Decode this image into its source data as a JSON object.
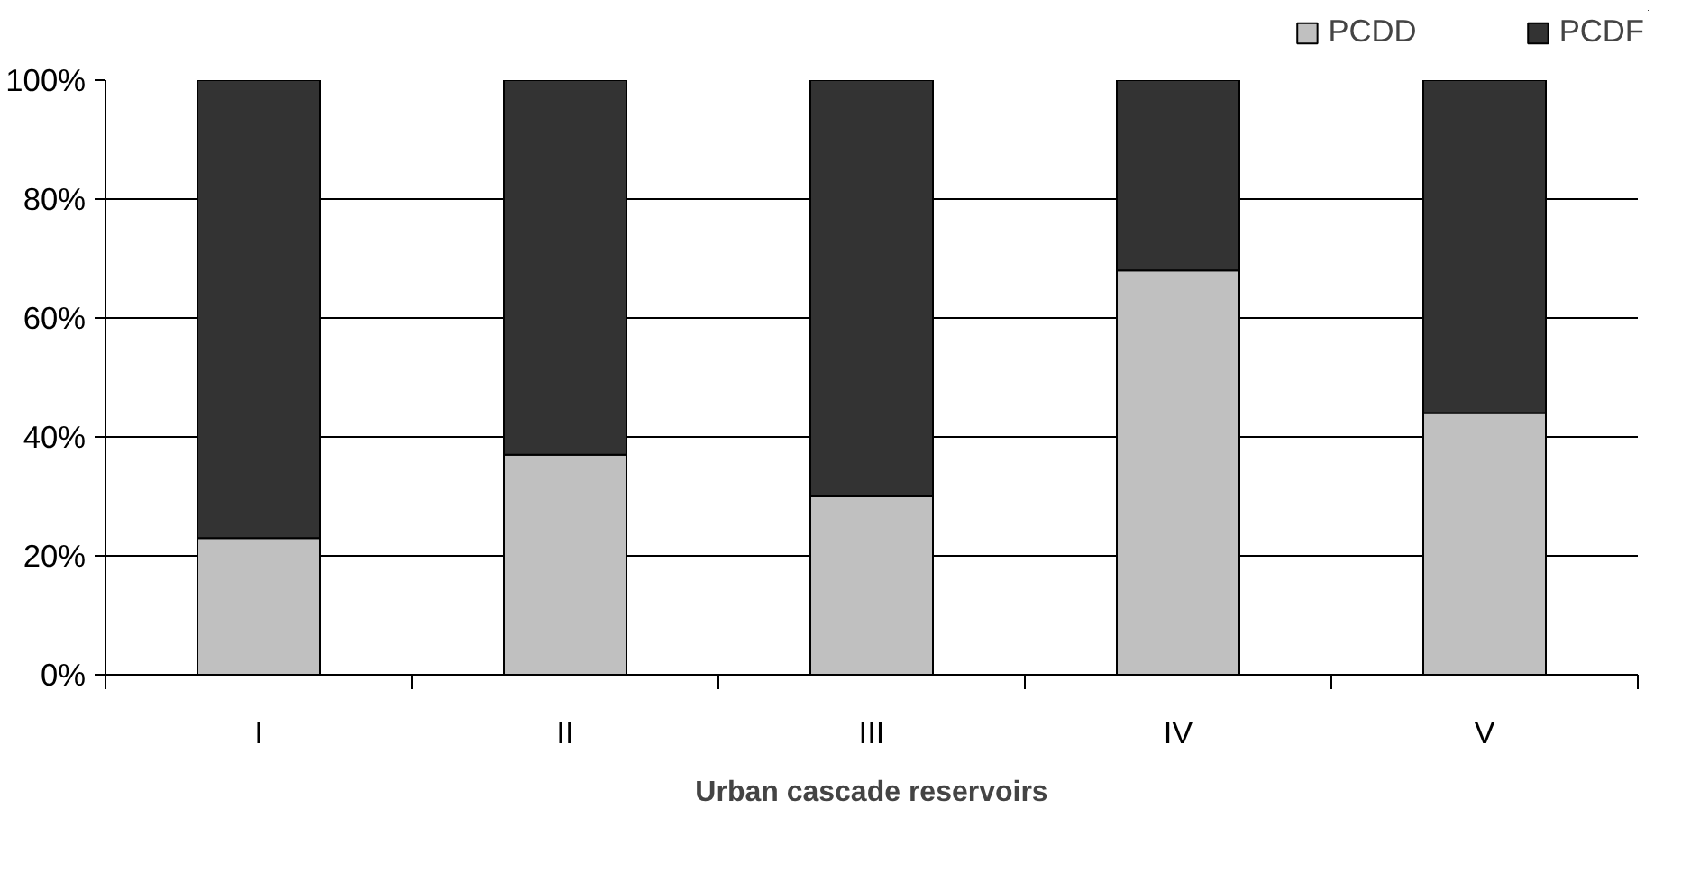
{
  "chart_data": {
    "type": "bar",
    "stacked": true,
    "xlabel": "Urban cascade reservoirs",
    "categories": [
      "I",
      "II",
      "III",
      "IV",
      "V"
    ],
    "series": [
      {
        "name": "PCDD",
        "color": "#c0c0c0",
        "values": [
          23,
          37,
          30,
          68,
          44
        ]
      },
      {
        "name": "PCDF",
        "color": "#333333",
        "values": [
          77,
          63,
          70,
          32,
          56
        ]
      }
    ],
    "ylim": [
      0,
      100
    ],
    "yticks": [
      {
        "value": 0,
        "label": "0%"
      },
      {
        "value": 20,
        "label": "20%"
      },
      {
        "value": 40,
        "label": "40%"
      },
      {
        "value": 60,
        "label": "60%"
      },
      {
        "value": 80,
        "label": "80%"
      },
      {
        "value": 100,
        "label": "100%"
      }
    ],
    "grid": "y",
    "legend": "top right"
  }
}
